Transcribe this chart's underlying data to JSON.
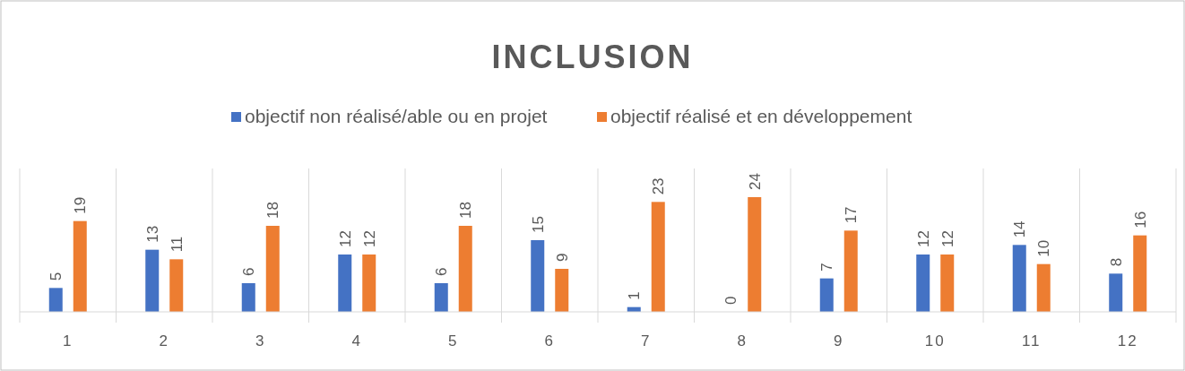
{
  "chart_data": {
    "type": "bar",
    "title": "INCLUSION",
    "categories": [
      "1",
      "2",
      "3",
      "4",
      "5",
      "6",
      "7",
      "8",
      "9",
      "10",
      "11",
      "12"
    ],
    "series": [
      {
        "name": "objectif non réalisé/able ou en projet",
        "color": "#4472c4",
        "values": [
          5,
          13,
          6,
          12,
          6,
          15,
          1,
          0,
          7,
          12,
          14,
          8
        ]
      },
      {
        "name": "objectif réalisé et en développement",
        "color": "#ed7d31",
        "values": [
          19,
          11,
          18,
          12,
          18,
          9,
          23,
          24,
          17,
          12,
          10,
          16
        ]
      }
    ],
    "ylim": [
      0,
      30
    ],
    "tick_labels": "x",
    "grid": "x",
    "legend": "top",
    "data_labels": true
  }
}
